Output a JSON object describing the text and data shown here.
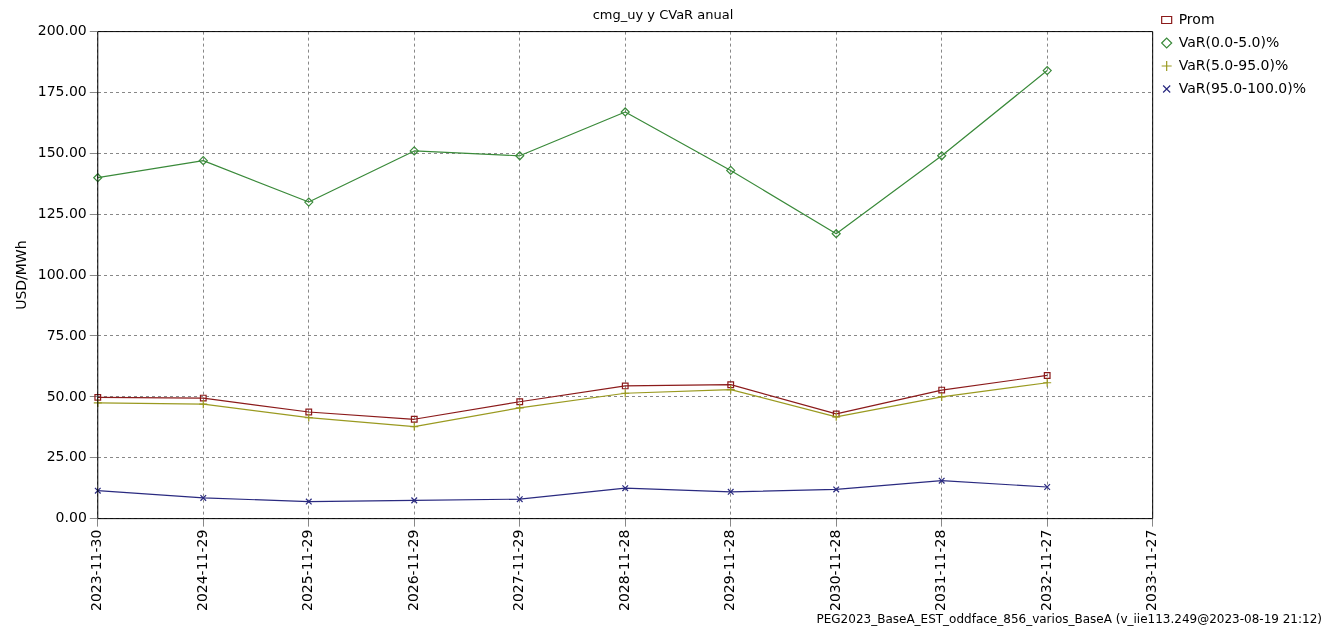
{
  "chart_data": {
    "type": "line",
    "title": "cmg_uy y CVaR anual",
    "ylabel": "USD/MWh",
    "categories": [
      "2023-11-30",
      "2024-11-29",
      "2025-11-29",
      "2026-11-29",
      "2027-11-29",
      "2028-11-28",
      "2029-11-28",
      "2030-11-28",
      "2031-11-28",
      "2032-11-27",
      "2033-11-27"
    ],
    "series": [
      {
        "name": "Prom",
        "color": "#8b1a1a",
        "marker": "square",
        "values": [
          49.8,
          49.5,
          43.8,
          40.8,
          48,
          54.5,
          55,
          43,
          52.8,
          58.8,
          null
        ]
      },
      {
        "name": "VaR(0.0-5.0)%",
        "color": "#3a8a3a",
        "marker": "diamond",
        "values": [
          140,
          147,
          130,
          151,
          149,
          167,
          143,
          117,
          149,
          184,
          null
        ]
      },
      {
        "name": "VaR(5.0-95.0)%",
        "color": "#9a9a20",
        "marker": "cross",
        "values": [
          47.5,
          47,
          41.5,
          37.8,
          45.5,
          51.5,
          53,
          41.8,
          50,
          55.8,
          null
        ]
      },
      {
        "name": "VaR(95.0-100.0)%",
        "color": "#2a2a80",
        "marker": "x",
        "values": [
          11.5,
          8.5,
          7,
          7.5,
          8,
          12.5,
          11,
          12,
          15.6,
          13,
          null
        ]
      }
    ],
    "ylim": [
      0,
      200
    ],
    "yticks": [
      {
        "value": 0,
        "label": "0.00"
      },
      {
        "value": 25,
        "label": "25.00"
      },
      {
        "value": 50,
        "label": "50.00"
      },
      {
        "value": 75,
        "label": "75.00"
      },
      {
        "value": 100,
        "label": "100.00"
      },
      {
        "value": 125,
        "label": "125.00"
      },
      {
        "value": 150,
        "label": "150.00"
      },
      {
        "value": 175,
        "label": "175.00"
      },
      {
        "value": 200,
        "label": "200.00"
      }
    ],
    "grid": true,
    "legend": "top right",
    "line_style": "solid",
    "annotations": [
      "PEG2023_BaseA_EST_oddface_856_varios_BaseA (v_iie113.249@2023-08-19 21:12)"
    ]
  }
}
